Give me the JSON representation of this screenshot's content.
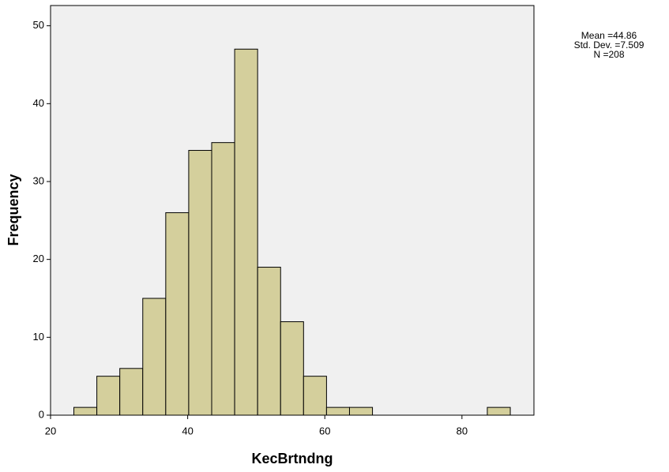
{
  "chart_data": {
    "type": "histogram",
    "x_label": "KecBrtndng",
    "y_label": "Frequency",
    "bins": [
      23.4,
      26.75,
      30.1,
      33.45,
      36.8,
      40.15,
      43.5,
      46.85,
      50.2,
      53.55,
      56.9,
      60.25,
      63.6,
      66.95,
      70.3,
      73.65,
      77.0,
      80.35,
      83.7,
      87.05
    ],
    "values": [
      1,
      5,
      6,
      15,
      26,
      34,
      35,
      47,
      19,
      12,
      5,
      1,
      1,
      0,
      0,
      0,
      0,
      0,
      1
    ],
    "color": "#d4cf9c",
    "xlim": [
      20,
      90.5
    ],
    "xticks": [
      20,
      40,
      60,
      80
    ],
    "ylim": [
      0,
      52.6
    ],
    "yticks": [
      0,
      10,
      20,
      30,
      40,
      50
    ],
    "annotations": [
      "Mean =44.86",
      "Std. Dev. =7.509",
      "N =208"
    ]
  }
}
